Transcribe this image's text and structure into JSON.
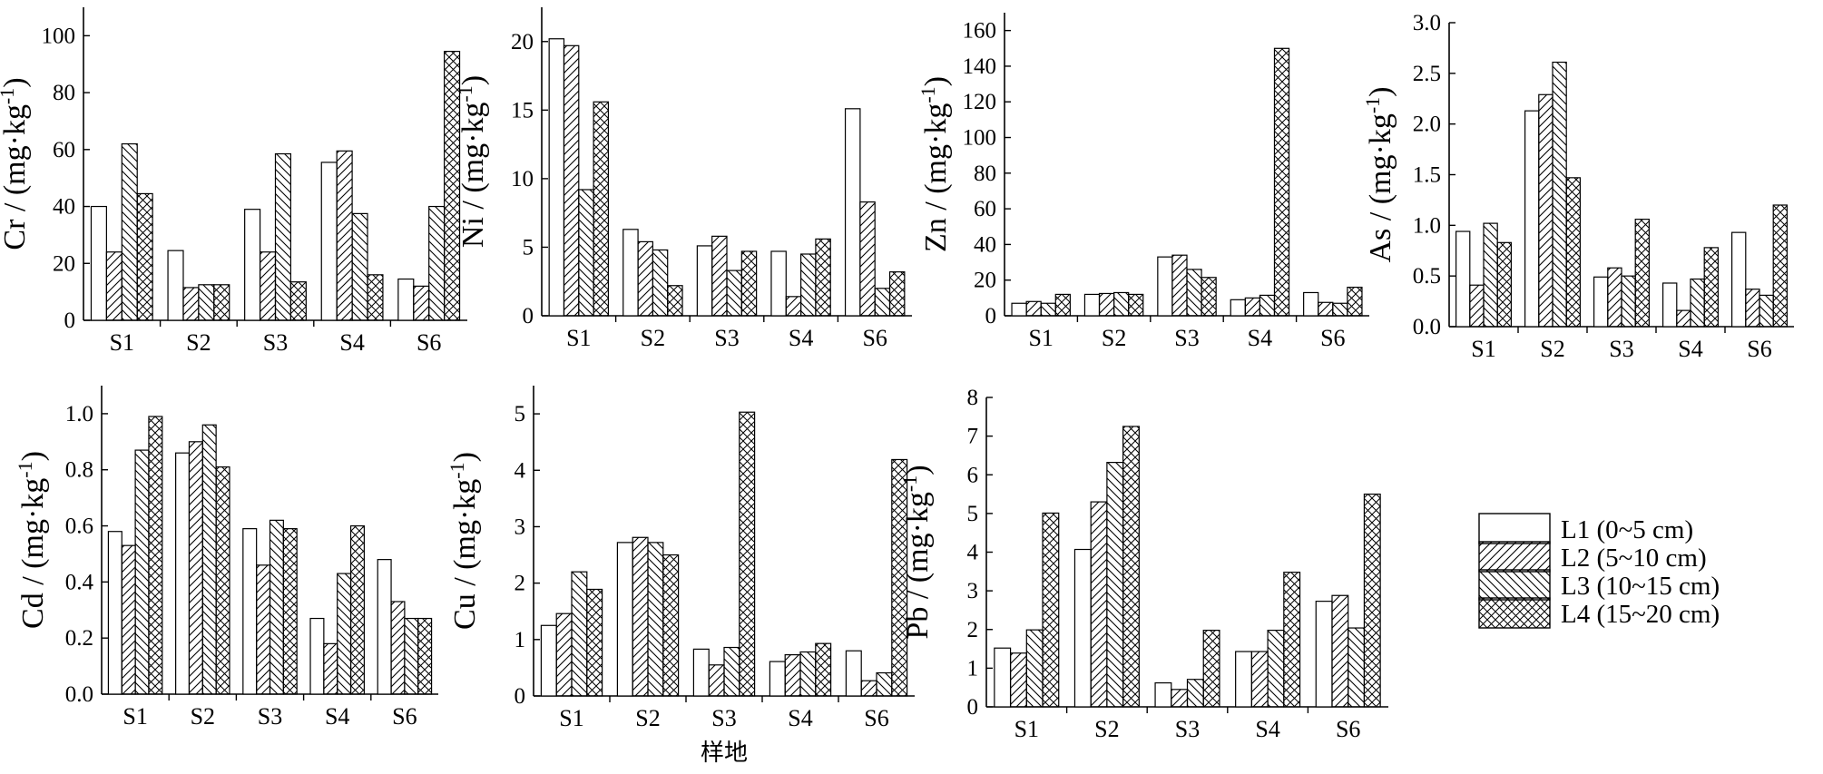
{
  "figure": {
    "xlabel": "样地"
  },
  "legend": [
    {
      "name": "L1 (0~5 cm)",
      "pattern": "none"
    },
    {
      "name": "L2 (5~10 cm)",
      "pattern": "diag-right"
    },
    {
      "name": "L3 (10~15 cm)",
      "pattern": "diag-left"
    },
    {
      "name": "L4 (15~20 cm)",
      "pattern": "cross"
    }
  ],
  "colors": {
    "bar_fill": "#ffffff",
    "ink": "#000000"
  },
  "chart_data": [
    {
      "type": "bar",
      "element": "Cr",
      "ylabel": "Cr / (mg·kg",
      "ylabel_sup": "-1",
      "ylabel_tail": ")",
      "categories": [
        "S1",
        "S2",
        "S3",
        "S4",
        "S6"
      ],
      "ylim": [
        0,
        110
      ],
      "yticks": [
        0,
        20,
        40,
        60,
        80,
        100
      ],
      "decimals": 0,
      "series": [
        {
          "name": "L1 (0~5 cm)",
          "values": [
            40,
            24.5,
            39,
            55.5,
            14.5
          ]
        },
        {
          "name": "L2 (5~10 cm)",
          "values": [
            24,
            11.5,
            24,
            59.5,
            12
          ]
        },
        {
          "name": "L3 (10~15 cm)",
          "values": [
            62,
            12.5,
            58.5,
            37.5,
            40
          ]
        },
        {
          "name": "L4 (15~20 cm)",
          "values": [
            44.5,
            12.5,
            13.5,
            16,
            94.5
          ]
        }
      ]
    },
    {
      "type": "bar",
      "element": "Ni",
      "ylabel": "Ni / (mg·kg",
      "ylabel_sup": "-1",
      "ylabel_tail": ")",
      "categories": [
        "S1",
        "S2",
        "S3",
        "S4",
        "S6"
      ],
      "ylim": [
        0,
        22.5
      ],
      "yticks": [
        0,
        5,
        10,
        15,
        20
      ],
      "decimals": 0,
      "series": [
        {
          "name": "L1 (0~5 cm)",
          "values": [
            20.2,
            6.3,
            5.1,
            4.7,
            15.1
          ]
        },
        {
          "name": "L2 (5~10 cm)",
          "values": [
            19.7,
            5.4,
            5.8,
            1.4,
            8.3
          ]
        },
        {
          "name": "L3 (10~15 cm)",
          "values": [
            9.2,
            4.8,
            3.3,
            4.5,
            2.0
          ]
        },
        {
          "name": "L4 (15~20 cm)",
          "values": [
            15.6,
            2.2,
            4.7,
            5.6,
            3.2
          ]
        }
      ]
    },
    {
      "type": "bar",
      "element": "Zn",
      "ylabel": "Zn / (mg·kg",
      "ylabel_sup": "-1",
      "ylabel_tail": ")",
      "categories": [
        "S1",
        "S2",
        "S3",
        "S4",
        "S6"
      ],
      "ylim": [
        0,
        170
      ],
      "yticks": [
        0,
        20,
        40,
        60,
        80,
        100,
        120,
        140,
        160
      ],
      "decimals": 0,
      "series": [
        {
          "name": "L1 (0~5 cm)",
          "values": [
            7,
            12,
            33,
            9,
            13
          ]
        },
        {
          "name": "L2 (5~10 cm)",
          "values": [
            8,
            12.5,
            34,
            10,
            7.5
          ]
        },
        {
          "name": "L3 (10~15 cm)",
          "values": [
            7,
            13,
            26,
            11.5,
            7
          ]
        },
        {
          "name": "L4 (15~20 cm)",
          "values": [
            12,
            12,
            21.5,
            150,
            16
          ]
        }
      ]
    },
    {
      "type": "bar",
      "element": "As",
      "ylabel": "As / (mg·kg",
      "ylabel_sup": "-1",
      "ylabel_tail": ")",
      "categories": [
        "S1",
        "S2",
        "S3",
        "S4",
        "S6"
      ],
      "ylim": [
        0,
        3.0
      ],
      "yticks": [
        0,
        0.5,
        1.0,
        1.5,
        2.0,
        2.5,
        3.0
      ],
      "decimals": 1,
      "series": [
        {
          "name": "L1 (0~5 cm)",
          "values": [
            0.94,
            2.13,
            0.49,
            0.43,
            0.93
          ]
        },
        {
          "name": "L2 (5~10 cm)",
          "values": [
            0.41,
            2.29,
            0.58,
            0.16,
            0.37
          ]
        },
        {
          "name": "L3 (10~15 cm)",
          "values": [
            1.02,
            2.61,
            0.5,
            0.47,
            0.31
          ]
        },
        {
          "name": "L4 (15~20 cm)",
          "values": [
            0.83,
            1.47,
            1.06,
            0.78,
            1.2
          ]
        }
      ]
    },
    {
      "type": "bar",
      "element": "Cd",
      "ylabel": "Cd / (mg·kg",
      "ylabel_sup": "-1",
      "ylabel_tail": ")",
      "categories": [
        "S1",
        "S2",
        "S3",
        "S4",
        "S6"
      ],
      "ylim": [
        0,
        1.1
      ],
      "yticks": [
        0,
        0.2,
        0.4,
        0.6,
        0.8,
        1.0
      ],
      "decimals": 1,
      "series": [
        {
          "name": "L1 (0~5 cm)",
          "values": [
            0.58,
            0.86,
            0.59,
            0.27,
            0.48
          ]
        },
        {
          "name": "L2 (5~10 cm)",
          "values": [
            0.53,
            0.9,
            0.46,
            0.18,
            0.33
          ]
        },
        {
          "name": "L3 (10~15 cm)",
          "values": [
            0.87,
            0.96,
            0.62,
            0.43,
            0.27
          ]
        },
        {
          "name": "L4 (15~20 cm)",
          "values": [
            0.99,
            0.81,
            0.59,
            0.6,
            0.27
          ]
        }
      ]
    },
    {
      "type": "bar",
      "element": "Cu",
      "ylabel": "Cu / (mg·kg",
      "ylabel_sup": "-1",
      "ylabel_tail": ")",
      "categories": [
        "S1",
        "S2",
        "S3",
        "S4",
        "S6"
      ],
      "ylim": [
        0,
        5.5
      ],
      "yticks": [
        0,
        1,
        2,
        3,
        4,
        5
      ],
      "decimals": 0,
      "series": [
        {
          "name": "L1 (0~5 cm)",
          "values": [
            1.25,
            2.72,
            0.83,
            0.61,
            0.8
          ]
        },
        {
          "name": "L2 (5~10 cm)",
          "values": [
            1.46,
            2.81,
            0.55,
            0.73,
            0.27
          ]
        },
        {
          "name": "L3 (10~15 cm)",
          "values": [
            2.2,
            2.72,
            0.86,
            0.78,
            0.41
          ]
        },
        {
          "name": "L4 (15~20 cm)",
          "values": [
            1.89,
            2.5,
            5.03,
            0.93,
            4.19
          ]
        }
      ]
    },
    {
      "type": "bar",
      "element": "Pb",
      "ylabel": "Pb / (mg·kg",
      "ylabel_sup": "-1",
      "ylabel_tail": ")",
      "categories": [
        "S1",
        "S2",
        "S3",
        "S4",
        "S6"
      ],
      "ylim": [
        0,
        8
      ],
      "yticks": [
        0,
        1,
        2,
        3,
        4,
        5,
        6,
        7,
        8
      ],
      "decimals": 0,
      "series": [
        {
          "name": "L1 (0~5 cm)",
          "values": [
            1.52,
            4.07,
            0.62,
            1.43,
            2.73
          ]
        },
        {
          "name": "L2 (5~10 cm)",
          "values": [
            1.39,
            5.3,
            0.45,
            1.43,
            2.88
          ]
        },
        {
          "name": "L3 (10~15 cm)",
          "values": [
            1.99,
            6.32,
            0.71,
            1.98,
            2.04
          ]
        },
        {
          "name": "L4 (15~20 cm)",
          "values": [
            5.01,
            7.25,
            1.98,
            3.48,
            5.5
          ]
        }
      ]
    }
  ]
}
